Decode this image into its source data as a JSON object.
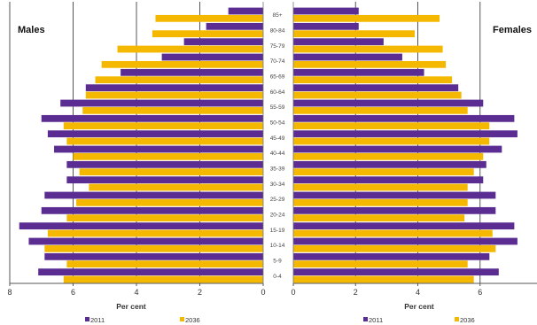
{
  "chart_data": {
    "type": "bar",
    "orientation": "horizontal",
    "xlabel": "Per cent",
    "grid": true,
    "age_groups": [
      "0-4",
      "5-9",
      "10-14",
      "15-19",
      "20-24",
      "25-29",
      "30-34",
      "35-39",
      "40-44",
      "45-49",
      "50-54",
      "55-59",
      "60-64",
      "65-69",
      "70-74",
      "75-79",
      "80-84",
      "85+"
    ],
    "colors": {
      "2011": "#5b2c91",
      "2036": "#f5b800"
    },
    "panels": [
      {
        "title": "Males",
        "xlim": [
          8,
          0
        ],
        "ticks": [
          "8",
          "6",
          "4",
          "2",
          "0"
        ],
        "legend": [
          "2011",
          "2036"
        ],
        "series": [
          {
            "name": "2011",
            "values": [
              7.1,
              6.9,
              7.4,
              7.7,
              7.0,
              6.9,
              6.2,
              6.2,
              6.6,
              6.8,
              7.0,
              6.4,
              5.6,
              4.5,
              3.2,
              2.5,
              1.8,
              1.1
            ]
          },
          {
            "name": "2036",
            "values": [
              6.3,
              6.2,
              6.9,
              6.8,
              6.2,
              5.9,
              5.5,
              5.8,
              6.0,
              6.2,
              6.3,
              5.7,
              5.6,
              5.3,
              5.1,
              4.6,
              3.5,
              3.4
            ]
          }
        ]
      },
      {
        "title": "Females",
        "xlim": [
          0,
          8
        ],
        "ticks": [
          "0",
          "2",
          "4",
          "6",
          "8"
        ],
        "legend": [
          "2011",
          "2036"
        ],
        "series": [
          {
            "name": "2011",
            "values": [
              6.6,
              6.3,
              7.2,
              7.1,
              6.5,
              6.5,
              6.1,
              6.2,
              6.7,
              7.2,
              7.1,
              6.1,
              5.3,
              4.2,
              3.5,
              2.9,
              2.1,
              2.1
            ]
          },
          {
            "name": "2036",
            "values": [
              5.8,
              5.6,
              6.5,
              6.4,
              5.5,
              5.6,
              5.6,
              5.8,
              6.1,
              6.3,
              6.3,
              5.6,
              5.4,
              5.1,
              4.9,
              4.8,
              3.9,
              4.7
            ]
          }
        ]
      }
    ]
  }
}
